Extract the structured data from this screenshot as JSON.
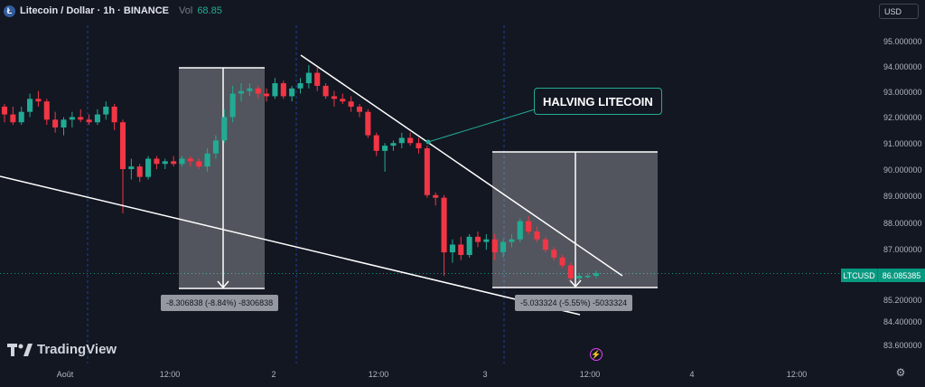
{
  "header": {
    "symbol_title": "Litecoin / Dollar · 1h · BINANCE",
    "vol_label": "Vol",
    "vol_value": "68.85",
    "currency": "USD"
  },
  "annotations": {
    "halving": "HALVING LITECOIN",
    "measure_left": "-8.306838 (-8.84%) -8306838",
    "measure_right": "-5.033324 (-5.55%) -5033324"
  },
  "current_price": {
    "symbol": "LTCUSD",
    "value": "86.085385"
  },
  "branding": "TradingView",
  "colors": {
    "up": "#22ab94",
    "down": "#f23645",
    "background": "#131722"
  },
  "chart_data": {
    "type": "candlestick",
    "ylim": [
      83.0,
      95.6
    ],
    "price_scale_ticks": [
      "95.000000",
      "94.000000",
      "93.000000",
      "92.000000",
      "91.000000",
      "90.000000",
      "89.000000",
      "88.000000",
      "87.000000",
      "86.000000",
      "85.200000",
      "84.400000",
      "83.600000"
    ],
    "time_ticks": [
      "Août",
      "12:00",
      "2",
      "12:00",
      "3",
      "12:00",
      "4",
      "12:00"
    ],
    "candles": [
      [
        92.5,
        92.6,
        91.9,
        92.2
      ],
      [
        92.2,
        92.5,
        91.8,
        91.9
      ],
      [
        91.9,
        92.5,
        91.8,
        92.3
      ],
      [
        92.3,
        93.0,
        92.1,
        92.8
      ],
      [
        92.8,
        93.1,
        92.5,
        92.7
      ],
      [
        92.7,
        92.8,
        91.8,
        92.0
      ],
      [
        92.0,
        92.3,
        91.5,
        91.7
      ],
      [
        91.7,
        92.1,
        91.4,
        92.0
      ],
      [
        92.0,
        92.3,
        91.7,
        92.1
      ],
      [
        92.1,
        92.4,
        91.9,
        92.0
      ],
      [
        92.0,
        92.2,
        91.8,
        91.9
      ],
      [
        91.9,
        92.4,
        91.8,
        92.2
      ],
      [
        92.2,
        92.7,
        92.0,
        92.5
      ],
      [
        92.5,
        92.6,
        91.6,
        91.9
      ],
      [
        91.9,
        92.0,
        88.4,
        90.1
      ],
      [
        90.1,
        90.5,
        89.7,
        90.2
      ],
      [
        90.2,
        90.3,
        89.6,
        89.8
      ],
      [
        89.8,
        90.6,
        89.7,
        90.5
      ],
      [
        90.5,
        90.6,
        90.1,
        90.3
      ],
      [
        90.3,
        90.5,
        90.1,
        90.4
      ],
      [
        90.4,
        90.6,
        90.2,
        90.3
      ],
      [
        90.3,
        90.6,
        90.2,
        90.5
      ],
      [
        90.5,
        90.6,
        90.2,
        90.4
      ],
      [
        90.4,
        90.5,
        90.1,
        90.2
      ],
      [
        90.2,
        90.9,
        90.0,
        90.7
      ],
      [
        90.7,
        91.4,
        90.5,
        91.2
      ],
      [
        91.2,
        92.4,
        91.1,
        92.1
      ],
      [
        92.1,
        93.3,
        91.9,
        93.0
      ],
      [
        93.0,
        93.4,
        92.7,
        93.1
      ],
      [
        93.1,
        93.4,
        92.9,
        93.2
      ],
      [
        93.2,
        93.3,
        92.8,
        93.0
      ],
      [
        93.0,
        93.2,
        92.7,
        92.9
      ],
      [
        92.9,
        93.6,
        92.8,
        93.4
      ],
      [
        93.4,
        93.5,
        92.8,
        92.9
      ],
      [
        92.9,
        93.3,
        92.7,
        93.2
      ],
      [
        93.2,
        93.6,
        93.0,
        93.4
      ],
      [
        93.4,
        94.1,
        93.2,
        93.8
      ],
      [
        93.8,
        94.0,
        93.1,
        93.3
      ],
      [
        93.3,
        93.4,
        92.8,
        92.9
      ],
      [
        92.9,
        93.1,
        92.5,
        92.8
      ],
      [
        92.8,
        93.0,
        92.6,
        92.7
      ],
      [
        92.7,
        92.9,
        92.3,
        92.5
      ],
      [
        92.5,
        92.6,
        92.1,
        92.3
      ],
      [
        92.3,
        92.4,
        91.3,
        91.4
      ],
      [
        91.4,
        91.5,
        90.6,
        90.8
      ],
      [
        90.8,
        91.1,
        90.0,
        91.0
      ],
      [
        91.0,
        91.2,
        90.8,
        91.1
      ],
      [
        91.1,
        91.5,
        90.9,
        91.3
      ],
      [
        91.3,
        91.5,
        91.0,
        91.1
      ],
      [
        91.1,
        91.3,
        90.7,
        90.9
      ],
      [
        90.9,
        91.0,
        89.0,
        89.1
      ],
      [
        89.1,
        89.2,
        88.7,
        89.0
      ],
      [
        89.0,
        89.1,
        86.0,
        86.9
      ],
      [
        86.9,
        87.4,
        86.5,
        87.2
      ],
      [
        87.2,
        87.5,
        86.6,
        86.8
      ],
      [
        86.8,
        87.6,
        86.7,
        87.5
      ],
      [
        87.5,
        87.7,
        87.1,
        87.3
      ],
      [
        87.3,
        87.6,
        87.0,
        87.4
      ],
      [
        87.4,
        87.6,
        86.6,
        86.9
      ],
      [
        86.9,
        87.4,
        86.7,
        87.3
      ],
      [
        87.3,
        87.6,
        87.1,
        87.4
      ],
      [
        87.4,
        88.2,
        87.3,
        88.1
      ],
      [
        88.1,
        88.3,
        87.6,
        87.7
      ],
      [
        87.7,
        87.9,
        87.3,
        87.4
      ],
      [
        87.4,
        87.5,
        86.9,
        87.0
      ],
      [
        87.0,
        87.1,
        86.6,
        86.7
      ],
      [
        86.7,
        86.8,
        86.3,
        86.4
      ],
      [
        86.4,
        86.5,
        85.8,
        85.9
      ],
      [
        85.9,
        86.1,
        85.8,
        86.0
      ],
      [
        86.0,
        86.1,
        85.9,
        86.0
      ],
      [
        86.0,
        86.2,
        85.9,
        86.1
      ]
    ],
    "annotations": [
      {
        "type": "trendline",
        "from": [
          "2 (~06:00)",
          94.5
        ],
        "to": [
          "3 (~18:00)",
          86.0
        ]
      },
      {
        "type": "trendline",
        "from": [
          "Août (start)",
          89.9
        ],
        "to": [
          "3 (~14:00)",
          84.6
        ]
      },
      {
        "type": "price_range",
        "change": -8.306838,
        "percent": -8.84
      },
      {
        "type": "price_range",
        "change": -5.033324,
        "percent": -5.55
      }
    ]
  }
}
